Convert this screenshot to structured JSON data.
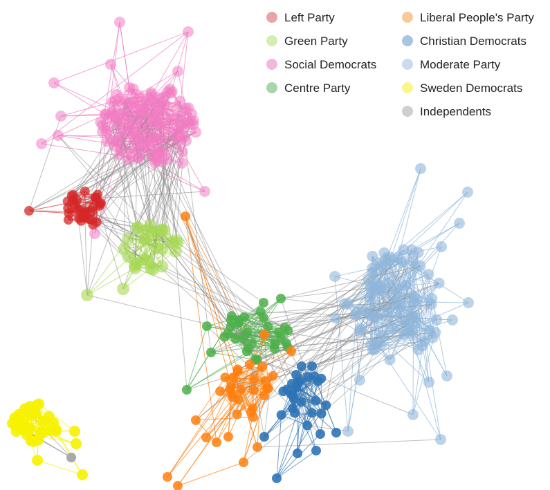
{
  "legend": {
    "items": [
      {
        "label": "Left Party",
        "color": "#e8a3a6"
      },
      {
        "label": "Green Party",
        "color": "#d4eeb0"
      },
      {
        "label": "Social Democrats",
        "color": "#f3b6dc"
      },
      {
        "label": "Centre Party",
        "color": "#a8d6a8"
      },
      {
        "label": "Liberal People's Party",
        "color": "#fac89a"
      },
      {
        "label": "Christian Democrats",
        "color": "#a9c4e2"
      },
      {
        "label": "Moderate Party",
        "color": "#c9dbec"
      },
      {
        "label": "Sweden Democrats",
        "color": "#fbf68c"
      },
      {
        "label": "Independents",
        "color": "#cfcfcf"
      }
    ]
  },
  "node_colors": {
    "left_party": "#d62728",
    "green_party": "#a6d854",
    "social_democrats": "#f27bc2",
    "centre_party": "#4daf4a",
    "liberal_peoples_party": "#ff7f0e",
    "christian_democrats": "#2f74b5",
    "moderate_party": "#8fb6db",
    "sweden_democrats": "#f6f200",
    "independents": "#a9a9a9"
  }
}
